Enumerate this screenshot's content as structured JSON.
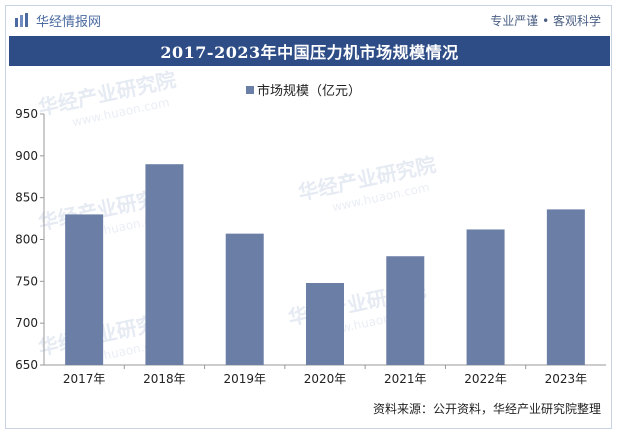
{
  "header": {
    "brand": "华经情报网",
    "slogan": "专业严谨 • 客观科学"
  },
  "watermark": {
    "text": "华经产业研究院",
    "url": "www.huaon.com"
  },
  "source_note": "资料来源：公开资料，华经产业研究院整理",
  "colors": {
    "bar": "#6b7ea6",
    "title_bg": "#2e4d87",
    "brand": "#4a6aa1"
  },
  "chart_data": {
    "type": "bar",
    "title": "2017-2023年中国压力机市场规模情况",
    "categories": [
      "2017年",
      "2018年",
      "2019年",
      "2020年",
      "2021年",
      "2022年",
      "2023年"
    ],
    "series": [
      {
        "name": "市场规模（亿元）",
        "values": [
          830,
          890,
          807,
          748,
          780,
          812,
          836
        ]
      }
    ],
    "ylim": [
      650,
      950
    ],
    "yticks": [
      650,
      700,
      750,
      800,
      850,
      900,
      950
    ],
    "legend": "top-center",
    "grid": false
  }
}
